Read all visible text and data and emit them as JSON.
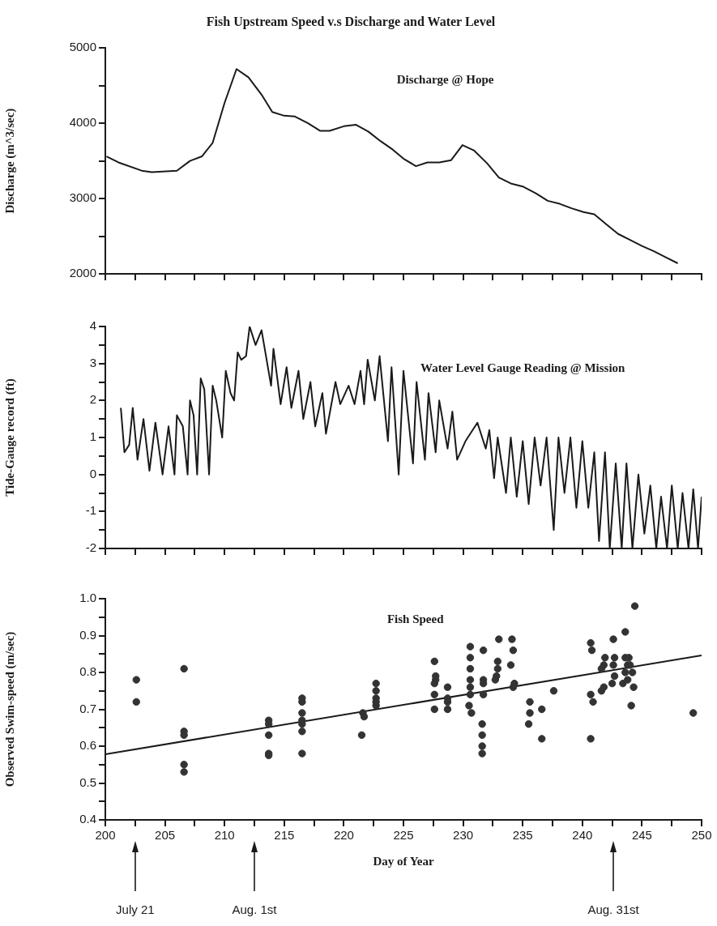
{
  "chart_data": [
    {
      "type": "line",
      "title": "Fish Upstream Speed v.s Discharge and Water Level",
      "subtitle": "Discharge @ Hope",
      "ylabel": "Discharge (m^3/sec)",
      "legend": false,
      "grid": false,
      "tick_labels": "y",
      "xlim": [
        200,
        250
      ],
      "ylim": [
        2000,
        5000
      ],
      "xticks": [
        200,
        {
          "value": 202.5,
          "label": null
        },
        205,
        {
          "value": 207.5,
          "label": null
        },
        210,
        {
          "value": 212.5,
          "label": null
        },
        215,
        {
          "value": 217.5,
          "label": null
        },
        220,
        {
          "value": 222.5,
          "label": null
        },
        225,
        {
          "value": 227.5,
          "label": null
        },
        230,
        {
          "value": 232.5,
          "label": null
        },
        235,
        {
          "value": 237.5,
          "label": null
        },
        240,
        {
          "value": 242.5,
          "label": null
        },
        245,
        {
          "value": 247.5,
          "label": null
        },
        250
      ],
      "yticks": [
        2000,
        {
          "value": 2500,
          "label": null
        },
        3000,
        {
          "value": 3500,
          "label": null
        },
        4000,
        {
          "value": 4500,
          "label": null
        },
        5000
      ],
      "series": [
        {
          "color": "#1a1a1a",
          "x": [
            200.1,
            201.1,
            203.05,
            203.9,
            206.0,
            207.1,
            208.1,
            209.0,
            210.0,
            211.0,
            212.0,
            213.1,
            214.0,
            215.0,
            215.9,
            217.0,
            218.0,
            218.8,
            220.0,
            221.0,
            222.05,
            223.1,
            224.1,
            225.0,
            226.05,
            227.0,
            228.0,
            229.0,
            229.95,
            230.9,
            232.0,
            233.0,
            234.0,
            235.0,
            236.1,
            237.1,
            238.1,
            239.1,
            240.1,
            241.0,
            242.0,
            243.0,
            244.0,
            245.0,
            246.0,
            247.0,
            248.0
          ],
          "values": [
            3560,
            3480,
            3370,
            3350,
            3370,
            3500,
            3560,
            3740,
            4270,
            4720,
            4610,
            4380,
            4150,
            4100,
            4090,
            4000,
            3900,
            3900,
            3960,
            3980,
            3890,
            3760,
            3650,
            3530,
            3430,
            3480,
            3480,
            3510,
            3710,
            3640,
            3470,
            3280,
            3200,
            3160,
            3070,
            2970,
            2930,
            2870,
            2820,
            2790,
            2660,
            2530,
            2450,
            2370,
            2300,
            2220,
            2140
          ]
        }
      ]
    },
    {
      "type": "line",
      "title": "Water Level Gauge Reading @ Mission",
      "ylabel": "Tide-Gauge record (ft)",
      "legend": false,
      "grid": false,
      "tick_labels": "y",
      "xlim": [
        200,
        250
      ],
      "ylim": [
        -2,
        4
      ],
      "xticks": [
        200,
        {
          "value": 202.5,
          "label": null
        },
        205,
        {
          "value": 207.5,
          "label": null
        },
        210,
        {
          "value": 212.5,
          "label": null
        },
        215,
        {
          "value": 217.5,
          "label": null
        },
        220,
        {
          "value": 222.5,
          "label": null
        },
        225,
        {
          "value": 227.5,
          "label": null
        },
        230,
        {
          "value": 232.5,
          "label": null
        },
        235,
        {
          "value": 237.5,
          "label": null
        },
        240,
        {
          "value": 242.5,
          "label": null
        },
        245,
        {
          "value": 247.5,
          "label": null
        },
        250
      ],
      "yticks": [
        -2,
        {
          "value": -1.5,
          "label": null
        },
        -1,
        {
          "value": -0.5,
          "label": null
        },
        0,
        {
          "value": 0.5,
          "label": null
        },
        1,
        {
          "value": 1.5,
          "label": null
        },
        2,
        {
          "value": 2.5,
          "label": null
        },
        3,
        {
          "value": 3.5,
          "label": null
        },
        4
      ],
      "series": [
        {
          "color": "#1a1a1a",
          "x": [
            201.3,
            201.6,
            202.0,
            202.3,
            202.7,
            203.2,
            203.7,
            204.2,
            204.8,
            205.3,
            205.8,
            206.0,
            206.5,
            206.9,
            207.1,
            207.4,
            207.7,
            208.0,
            208.3,
            208.7,
            209.0,
            209.3,
            209.8,
            210.1,
            210.5,
            210.8,
            211.1,
            211.4,
            211.8,
            212.1,
            212.6,
            213.1,
            213.9,
            214.1,
            214.7,
            215.2,
            215.6,
            216.2,
            216.6,
            217.2,
            217.6,
            218.2,
            218.5,
            219.3,
            219.7,
            220.4,
            220.9,
            221.4,
            221.7,
            222.0,
            222.6,
            223.0,
            223.7,
            224.0,
            224.6,
            225.0,
            225.8,
            226.1,
            226.8,
            227.1,
            227.7,
            228.0,
            228.7,
            229.1,
            229.5,
            230.2,
            231.2,
            231.9,
            232.2,
            232.6,
            232.9,
            233.6,
            234.0,
            234.5,
            235.0,
            235.5,
            236.0,
            236.5,
            237.0,
            237.6,
            238.0,
            238.5,
            239.0,
            239.5,
            240.0,
            240.5,
            241.0,
            241.4,
            241.9,
            242.3,
            242.8,
            243.3,
            243.7,
            244.2,
            244.7,
            245.2,
            245.7,
            246.2,
            246.6,
            247.1,
            247.5,
            248.0,
            248.4,
            248.9,
            249.3,
            249.7,
            250.0
          ],
          "values": [
            1.8,
            0.6,
            0.8,
            1.8,
            0.4,
            1.5,
            0.1,
            1.4,
            0,
            1.3,
            0,
            1.6,
            1.3,
            0,
            2.0,
            1.6,
            0,
            2.6,
            2.3,
            0,
            2.4,
            2.0,
            1.0,
            2.8,
            2.2,
            2.0,
            3.3,
            3.1,
            3.2,
            4.0,
            3.5,
            3.9,
            2.4,
            3.4,
            1.9,
            2.9,
            1.8,
            2.8,
            1.5,
            2.5,
            1.3,
            2.2,
            1.1,
            2.5,
            1.9,
            2.4,
            1.9,
            2.8,
            1.9,
            3.1,
            2.0,
            3.2,
            0.9,
            2.9,
            0,
            2.8,
            0.3,
            2.5,
            0.4,
            2.2,
            0.6,
            2.0,
            0.7,
            1.7,
            0.4,
            0.9,
            1.4,
            0.7,
            1.2,
            -0.1,
            1.0,
            -0.5,
            1.0,
            -0.6,
            0.9,
            -0.8,
            1.0,
            -0.3,
            1.0,
            -1.5,
            1.0,
            -0.5,
            1.0,
            -0.9,
            0.9,
            -0.9,
            0.6,
            -1.8,
            0.6,
            -2.0,
            0.3,
            -2.0,
            0.3,
            -2.0,
            0,
            -1.6,
            -0.3,
            -2.0,
            -0.6,
            -2.0,
            -0.3,
            -2.0,
            -0.5,
            -2.0,
            -0.4,
            -2.0,
            -0.6
          ]
        }
      ]
    },
    {
      "type": "scatter",
      "title": "Fish Speed",
      "xlabel": "Day of Year",
      "ylabel": "Observed Swim-speed (m/sec)",
      "legend": false,
      "grid": false,
      "marker": "circle",
      "xlim": [
        200,
        250
      ],
      "ylim": [
        0.4,
        1.0
      ],
      "xticks": [
        200,
        {
          "value": 202.5,
          "label": null
        },
        205,
        {
          "value": 207.5,
          "label": null
        },
        210,
        {
          "value": 212.5,
          "label": null
        },
        215,
        {
          "value": 217.5,
          "label": null
        },
        220,
        {
          "value": 222.5,
          "label": null
        },
        225,
        {
          "value": 227.5,
          "label": null
        },
        230,
        {
          "value": 232.5,
          "label": null
        },
        235,
        {
          "value": 237.5,
          "label": null
        },
        240,
        {
          "value": 242.5,
          "label": null
        },
        245,
        {
          "value": 247.5,
          "label": null
        },
        250
      ],
      "yticks": [
        0.4,
        {
          "value": 0.45,
          "label": null
        },
        0.5,
        {
          "value": 0.55,
          "label": null
        },
        0.6,
        {
          "value": 0.65,
          "label": null
        },
        0.7,
        {
          "value": 0.75,
          "label": null
        },
        0.8,
        {
          "value": 0.85,
          "label": null
        },
        0.9,
        {
          "value": 0.95,
          "label": null
        },
        {
          "value": 1,
          "label": "1.0"
        }
      ],
      "annotations": [
        "July 21",
        "Aug. 1st",
        "Aug. 31st"
      ],
      "series": [
        {
          "color": "#333333",
          "x": [
            202.6,
            202.6,
            206.6,
            206.6,
            206.6,
            206.6,
            206.6,
            213.7,
            213.7,
            213.7,
            213.7,
            213.7,
            216.5,
            216.5,
            216.5,
            216.5,
            216.5,
            216.5,
            216.5,
            221.5,
            221.6,
            221.7,
            222.7,
            222.7,
            222.7,
            222.7,
            222.7,
            227.6,
            227.7,
            227.7,
            227.6,
            227.6,
            227.6,
            228.7,
            228.7,
            228.7,
            228.7,
            230.6,
            230.6,
            230.6,
            230.6,
            230.6,
            230.6,
            230.5,
            230.7,
            231.6,
            231.6,
            231.6,
            231.6,
            231.7,
            231.7,
            231.7,
            231.7,
            232.9,
            232.9,
            232.8,
            232.7,
            233.0,
            234.1,
            234.2,
            234.0,
            234.3,
            234.2,
            235.6,
            235.6,
            235.5,
            236.6,
            236.6,
            237.6,
            240.7,
            240.8,
            240.7,
            240.9,
            240.7,
            241.6,
            241.8,
            241.8,
            241.9,
            241.6,
            242.6,
            242.7,
            242.6,
            242.7,
            242.5,
            243.6,
            243.6,
            243.8,
            243.6,
            243.8,
            243.4,
            243.9,
            244.0,
            244.2,
            244.3,
            244.1,
            244.4,
            249.3
          ],
          "values": [
            0.78,
            0.72,
            0.81,
            0.64,
            0.63,
            0.55,
            0.53,
            0.67,
            0.66,
            0.63,
            0.58,
            0.575,
            0.73,
            0.72,
            0.69,
            0.67,
            0.66,
            0.64,
            0.58,
            0.63,
            0.69,
            0.68,
            0.77,
            0.75,
            0.73,
            0.72,
            0.71,
            0.83,
            0.79,
            0.78,
            0.77,
            0.74,
            0.7,
            0.76,
            0.73,
            0.72,
            0.7,
            0.87,
            0.84,
            0.81,
            0.78,
            0.76,
            0.74,
            0.71,
            0.69,
            0.66,
            0.63,
            0.6,
            0.58,
            0.86,
            0.78,
            0.77,
            0.74,
            0.81,
            0.83,
            0.79,
            0.78,
            0.89,
            0.89,
            0.86,
            0.82,
            0.77,
            0.76,
            0.72,
            0.69,
            0.66,
            0.7,
            0.62,
            0.75,
            0.88,
            0.86,
            0.74,
            0.72,
            0.62,
            0.75,
            0.76,
            0.82,
            0.84,
            0.81,
            0.89,
            0.84,
            0.82,
            0.79,
            0.77,
            0.91,
            0.84,
            0.82,
            0.8,
            0.78,
            0.77,
            0.84,
            0.82,
            0.8,
            0.76,
            0.71,
            0.98,
            0.69
          ]
        },
        {
          "type": "line",
          "color": "#1a1a1a",
          "marker": "none",
          "x": [
            200,
            250
          ],
          "values": [
            0.578,
            0.846
          ]
        }
      ]
    }
  ]
}
